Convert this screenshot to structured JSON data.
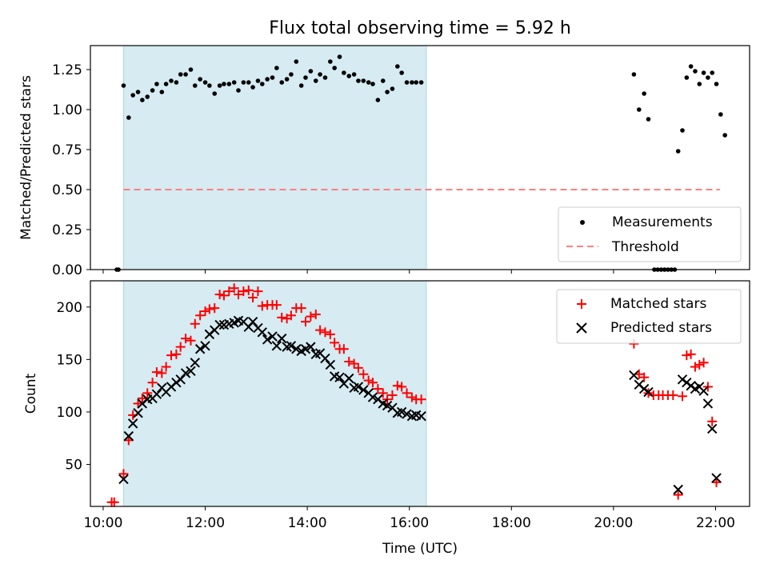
{
  "title": "Flux total observing time = 5.92 h",
  "chart_data": {
    "type": "scatter",
    "xlabel": "Time (UTC)",
    "x_ticks": [
      "10:00",
      "12:00",
      "14:00",
      "16:00",
      "18:00",
      "20:00",
      "22:00"
    ],
    "xlim": [
      "09:45",
      "22:40"
    ],
    "shaded_interval": [
      "10:24",
      "16:20"
    ],
    "colors": {
      "shade": "#add8e6",
      "matched": "#ff0000",
      "predicted": "#000000",
      "threshold": "#ff7f7f",
      "measurements": "#000000"
    },
    "top": {
      "ylabel": "Matched/Predicted stars",
      "ylim": [
        0,
        1.4
      ],
      "y_ticks": [
        "0.00",
        "0.25",
        "0.50",
        "0.75",
        "1.00",
        "1.25"
      ],
      "legend": {
        "position": "lower right",
        "measurements": "Measurements",
        "threshold": "Threshold"
      },
      "threshold": {
        "y": 0.5,
        "x_start": "10:24",
        "x_end": "22:05"
      },
      "measurements": [
        {
          "x": "10:16",
          "y": 0.0
        },
        {
          "x": "10:18",
          "y": 0.0
        },
        {
          "x": "10:24",
          "y": 1.15
        },
        {
          "x": "10:30",
          "y": 0.95
        },
        {
          "x": "10:35",
          "y": 1.09
        },
        {
          "x": "10:41",
          "y": 1.11
        },
        {
          "x": "10:46",
          "y": 1.06
        },
        {
          "x": "10:52",
          "y": 1.08
        },
        {
          "x": "10:58",
          "y": 1.12
        },
        {
          "x": "11:03",
          "y": 1.16
        },
        {
          "x": "11:09",
          "y": 1.11
        },
        {
          "x": "11:14",
          "y": 1.16
        },
        {
          "x": "11:20",
          "y": 1.18
        },
        {
          "x": "11:26",
          "y": 1.17
        },
        {
          "x": "11:31",
          "y": 1.22
        },
        {
          "x": "11:37",
          "y": 1.22
        },
        {
          "x": "11:43",
          "y": 1.25
        },
        {
          "x": "11:48",
          "y": 1.15
        },
        {
          "x": "11:54",
          "y": 1.19
        },
        {
          "x": "12:00",
          "y": 1.17
        },
        {
          "x": "12:05",
          "y": 1.15
        },
        {
          "x": "12:11",
          "y": 1.1
        },
        {
          "x": "12:17",
          "y": 1.15
        },
        {
          "x": "12:22",
          "y": 1.16
        },
        {
          "x": "12:28",
          "y": 1.16
        },
        {
          "x": "12:34",
          "y": 1.17
        },
        {
          "x": "12:39",
          "y": 1.12
        },
        {
          "x": "12:45",
          "y": 1.17
        },
        {
          "x": "12:51",
          "y": 1.17
        },
        {
          "x": "12:56",
          "y": 1.14
        },
        {
          "x": "13:02",
          "y": 1.18
        },
        {
          "x": "13:07",
          "y": 1.16
        },
        {
          "x": "13:13",
          "y": 1.19
        },
        {
          "x": "13:19",
          "y": 1.2
        },
        {
          "x": "13:24",
          "y": 1.26
        },
        {
          "x": "13:30",
          "y": 1.17
        },
        {
          "x": "13:36",
          "y": 1.19
        },
        {
          "x": "13:41",
          "y": 1.22
        },
        {
          "x": "13:47",
          "y": 1.3
        },
        {
          "x": "13:53",
          "y": 1.15
        },
        {
          "x": "13:58",
          "y": 1.2
        },
        {
          "x": "14:04",
          "y": 1.24
        },
        {
          "x": "14:10",
          "y": 1.18
        },
        {
          "x": "14:15",
          "y": 1.22
        },
        {
          "x": "14:21",
          "y": 1.2
        },
        {
          "x": "14:27",
          "y": 1.3
        },
        {
          "x": "14:32",
          "y": 1.26
        },
        {
          "x": "14:38",
          "y": 1.33
        },
        {
          "x": "14:43",
          "y": 1.23
        },
        {
          "x": "14:49",
          "y": 1.21
        },
        {
          "x": "14:55",
          "y": 1.22
        },
        {
          "x": "15:00",
          "y": 1.18
        },
        {
          "x": "15:06",
          "y": 1.18
        },
        {
          "x": "15:12",
          "y": 1.17
        },
        {
          "x": "15:17",
          "y": 1.16
        },
        {
          "x": "15:23",
          "y": 1.06
        },
        {
          "x": "15:29",
          "y": 1.18
        },
        {
          "x": "15:34",
          "y": 1.11
        },
        {
          "x": "15:40",
          "y": 1.13
        },
        {
          "x": "15:46",
          "y": 1.27
        },
        {
          "x": "15:51",
          "y": 1.23
        },
        {
          "x": "15:57",
          "y": 1.17
        },
        {
          "x": "16:03",
          "y": 1.17
        },
        {
          "x": "16:08",
          "y": 1.17
        },
        {
          "x": "16:14",
          "y": 1.17
        },
        {
          "x": "20:24",
          "y": 1.22
        },
        {
          "x": "20:30",
          "y": 1.0
        },
        {
          "x": "20:36",
          "y": 1.1
        },
        {
          "x": "20:41",
          "y": 0.94
        },
        {
          "x": "20:48",
          "y": 0.0
        },
        {
          "x": "20:52",
          "y": 0.0
        },
        {
          "x": "20:56",
          "y": 0.0
        },
        {
          "x": "21:00",
          "y": 0.0
        },
        {
          "x": "21:04",
          "y": 0.0
        },
        {
          "x": "21:08",
          "y": 0.0
        },
        {
          "x": "21:12",
          "y": 0.0
        },
        {
          "x": "21:16",
          "y": 0.74
        },
        {
          "x": "21:21",
          "y": 0.87
        },
        {
          "x": "21:26",
          "y": 1.2
        },
        {
          "x": "21:31",
          "y": 1.27
        },
        {
          "x": "21:36",
          "y": 1.24
        },
        {
          "x": "21:41",
          "y": 1.16
        },
        {
          "x": "21:46",
          "y": 1.23
        },
        {
          "x": "21:51",
          "y": 1.2
        },
        {
          "x": "21:56",
          "y": 1.23
        },
        {
          "x": "22:01",
          "y": 1.16
        },
        {
          "x": "22:06",
          "y": 0.97
        },
        {
          "x": "22:11",
          "y": 0.84
        }
      ]
    },
    "bottom": {
      "ylabel": "Count",
      "ylim": [
        10,
        225
      ],
      "y_ticks": [
        "50",
        "100",
        "150",
        "200"
      ],
      "legend": {
        "position": "upper right",
        "matched": "Matched stars",
        "predicted": "Predicted stars"
      },
      "matched": [
        {
          "x": "10:10",
          "y": 14
        },
        {
          "x": "10:13",
          "y": 14
        },
        {
          "x": "10:24",
          "y": 41
        },
        {
          "x": "10:30",
          "y": 73
        },
        {
          "x": "10:35",
          "y": 97
        },
        {
          "x": "10:41",
          "y": 108
        },
        {
          "x": "10:46",
          "y": 113
        },
        {
          "x": "10:52",
          "y": 118
        },
        {
          "x": "10:58",
          "y": 128
        },
        {
          "x": "11:03",
          "y": 138
        },
        {
          "x": "11:09",
          "y": 137
        },
        {
          "x": "11:14",
          "y": 143
        },
        {
          "x": "11:20",
          "y": 154
        },
        {
          "x": "11:26",
          "y": 155
        },
        {
          "x": "11:31",
          "y": 162
        },
        {
          "x": "11:37",
          "y": 170
        },
        {
          "x": "11:43",
          "y": 168
        },
        {
          "x": "11:48",
          "y": 184
        },
        {
          "x": "11:54",
          "y": 192
        },
        {
          "x": "12:00",
          "y": 196
        },
        {
          "x": "12:05",
          "y": 198
        },
        {
          "x": "12:11",
          "y": 199
        },
        {
          "x": "12:17",
          "y": 212
        },
        {
          "x": "12:22",
          "y": 211
        },
        {
          "x": "12:28",
          "y": 215
        },
        {
          "x": "12:34",
          "y": 218
        },
        {
          "x": "12:39",
          "y": 212
        },
        {
          "x": "12:45",
          "y": 215
        },
        {
          "x": "12:51",
          "y": 216
        },
        {
          "x": "12:56",
          "y": 209
        },
        {
          "x": "13:02",
          "y": 215
        },
        {
          "x": "13:07",
          "y": 201
        },
        {
          "x": "13:13",
          "y": 202
        },
        {
          "x": "13:19",
          "y": 202
        },
        {
          "x": "13:24",
          "y": 202
        },
        {
          "x": "13:30",
          "y": 190
        },
        {
          "x": "13:36",
          "y": 189
        },
        {
          "x": "13:41",
          "y": 192
        },
        {
          "x": "13:47",
          "y": 199
        },
        {
          "x": "13:53",
          "y": 199
        },
        {
          "x": "13:58",
          "y": 186
        },
        {
          "x": "14:04",
          "y": 191
        },
        {
          "x": "14:10",
          "y": 193
        },
        {
          "x": "14:15",
          "y": 178
        },
        {
          "x": "14:21",
          "y": 176
        },
        {
          "x": "14:27",
          "y": 174
        },
        {
          "x": "14:32",
          "y": 166
        },
        {
          "x": "14:38",
          "y": 160
        },
        {
          "x": "14:43",
          "y": 160
        },
        {
          "x": "14:49",
          "y": 148
        },
        {
          "x": "14:55",
          "y": 146
        },
        {
          "x": "15:00",
          "y": 142
        },
        {
          "x": "15:06",
          "y": 136
        },
        {
          "x": "15:12",
          "y": 130
        },
        {
          "x": "15:17",
          "y": 128
        },
        {
          "x": "15:23",
          "y": 122
        },
        {
          "x": "15:29",
          "y": 118
        },
        {
          "x": "15:34",
          "y": 112
        },
        {
          "x": "15:40",
          "y": 116
        },
        {
          "x": "15:46",
          "y": 125
        },
        {
          "x": "15:51",
          "y": 124
        },
        {
          "x": "15:57",
          "y": 118
        },
        {
          "x": "16:03",
          "y": 114
        },
        {
          "x": "16:08",
          "y": 112
        },
        {
          "x": "16:14",
          "y": 112
        },
        {
          "x": "20:24",
          "y": 165
        },
        {
          "x": "20:30",
          "y": 136
        },
        {
          "x": "20:36",
          "y": 133
        },
        {
          "x": "20:41",
          "y": 118
        },
        {
          "x": "20:47",
          "y": 116
        },
        {
          "x": "20:53",
          "y": 116
        },
        {
          "x": "20:58",
          "y": 116
        },
        {
          "x": "21:04",
          "y": 116
        },
        {
          "x": "21:10",
          "y": 116
        },
        {
          "x": "21:16",
          "y": 21
        },
        {
          "x": "21:21",
          "y": 115
        },
        {
          "x": "21:26",
          "y": 154
        },
        {
          "x": "21:31",
          "y": 155
        },
        {
          "x": "21:36",
          "y": 143
        },
        {
          "x": "21:41",
          "y": 145
        },
        {
          "x": "21:46",
          "y": 147
        },
        {
          "x": "21:51",
          "y": 124
        },
        {
          "x": "21:56",
          "y": 91
        },
        {
          "x": "22:01",
          "y": 33
        }
      ],
      "predicted": [
        {
          "x": "10:24",
          "y": 36
        },
        {
          "x": "10:30",
          "y": 77
        },
        {
          "x": "10:35",
          "y": 89
        },
        {
          "x": "10:41",
          "y": 99
        },
        {
          "x": "10:46",
          "y": 108
        },
        {
          "x": "10:52",
          "y": 112
        },
        {
          "x": "10:58",
          "y": 113
        },
        {
          "x": "11:03",
          "y": 117
        },
        {
          "x": "11:09",
          "y": 123
        },
        {
          "x": "11:14",
          "y": 119
        },
        {
          "x": "11:20",
          "y": 124
        },
        {
          "x": "11:26",
          "y": 128
        },
        {
          "x": "11:31",
          "y": 131
        },
        {
          "x": "11:37",
          "y": 137
        },
        {
          "x": "11:43",
          "y": 139
        },
        {
          "x": "11:48",
          "y": 147
        },
        {
          "x": "11:54",
          "y": 160
        },
        {
          "x": "12:00",
          "y": 163
        },
        {
          "x": "12:05",
          "y": 174
        },
        {
          "x": "12:11",
          "y": 178
        },
        {
          "x": "12:17",
          "y": 183
        },
        {
          "x": "12:22",
          "y": 183
        },
        {
          "x": "12:28",
          "y": 184
        },
        {
          "x": "12:34",
          "y": 185
        },
        {
          "x": "12:39",
          "y": 187
        },
        {
          "x": "12:45",
          "y": 186
        },
        {
          "x": "12:51",
          "y": 181
        },
        {
          "x": "12:56",
          "y": 186
        },
        {
          "x": "13:02",
          "y": 180
        },
        {
          "x": "13:07",
          "y": 176
        },
        {
          "x": "13:13",
          "y": 169
        },
        {
          "x": "13:19",
          "y": 172
        },
        {
          "x": "13:24",
          "y": 163
        },
        {
          "x": "13:30",
          "y": 170
        },
        {
          "x": "13:36",
          "y": 162
        },
        {
          "x": "13:41",
          "y": 163
        },
        {
          "x": "13:47",
          "y": 160
        },
        {
          "x": "13:53",
          "y": 158
        },
        {
          "x": "13:58",
          "y": 160
        },
        {
          "x": "14:04",
          "y": 162
        },
        {
          "x": "14:10",
          "y": 155
        },
        {
          "x": "14:15",
          "y": 156
        },
        {
          "x": "14:21",
          "y": 151
        },
        {
          "x": "14:27",
          "y": 145
        },
        {
          "x": "14:32",
          "y": 134
        },
        {
          "x": "14:38",
          "y": 133
        },
        {
          "x": "14:43",
          "y": 127
        },
        {
          "x": "14:49",
          "y": 132
        },
        {
          "x": "14:55",
          "y": 123
        },
        {
          "x": "15:00",
          "y": 124
        },
        {
          "x": "15:06",
          "y": 121
        },
        {
          "x": "15:12",
          "y": 118
        },
        {
          "x": "15:17",
          "y": 114
        },
        {
          "x": "15:23",
          "y": 112
        },
        {
          "x": "15:29",
          "y": 108
        },
        {
          "x": "15:34",
          "y": 106
        },
        {
          "x": "15:40",
          "y": 104
        },
        {
          "x": "15:46",
          "y": 99
        },
        {
          "x": "15:51",
          "y": 100
        },
        {
          "x": "15:57",
          "y": 98
        },
        {
          "x": "16:03",
          "y": 96
        },
        {
          "x": "16:08",
          "y": 97
        },
        {
          "x": "16:14",
          "y": 96
        },
        {
          "x": "20:24",
          "y": 135
        },
        {
          "x": "20:30",
          "y": 126
        },
        {
          "x": "20:36",
          "y": 122
        },
        {
          "x": "20:41",
          "y": 119
        },
        {
          "x": "21:16",
          "y": 26
        },
        {
          "x": "21:21",
          "y": 131
        },
        {
          "x": "21:26",
          "y": 128
        },
        {
          "x": "21:31",
          "y": 125
        },
        {
          "x": "21:36",
          "y": 122
        },
        {
          "x": "21:41",
          "y": 124
        },
        {
          "x": "21:46",
          "y": 120
        },
        {
          "x": "21:51",
          "y": 108
        },
        {
          "x": "21:56",
          "y": 84
        },
        {
          "x": "22:01",
          "y": 37
        }
      ]
    }
  }
}
